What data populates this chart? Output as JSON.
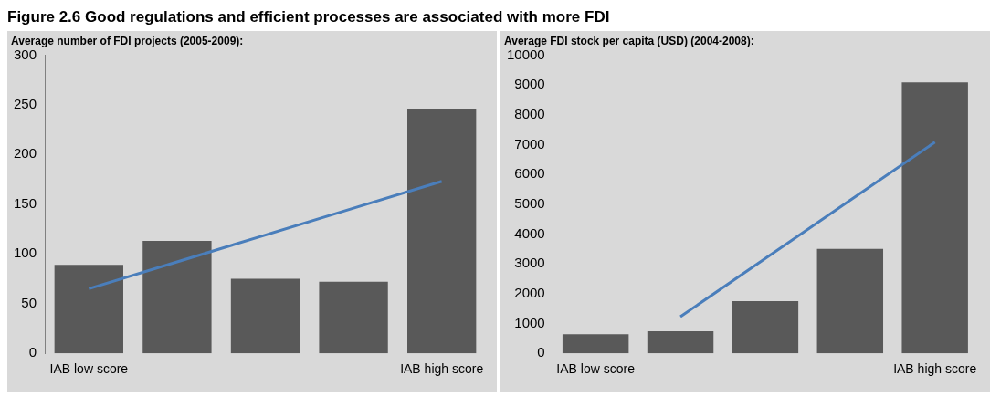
{
  "chart_data": [
    {
      "type": "bar",
      "title": "Average number of FDI projects (2005-2009):",
      "annotations": [
        "Figure 2.6 Good regulations and efficient processes are associated with more FDI"
      ],
      "categories": [
        "IAB low score",
        null,
        null,
        null,
        "IAB high score"
      ],
      "series": [
        {
          "color": "#595959",
          "values": [
            89,
            113,
            75,
            72,
            246
          ]
        },
        {
          "type": "line",
          "color": "#4a7ebb",
          "values": [
            65,
            92,
            119,
            146,
            173
          ]
        }
      ],
      "ylim": [
        0,
        300
      ],
      "yticks": [
        0,
        50,
        100,
        150,
        200,
        250,
        300
      ],
      "grid": false,
      "legend": false
    },
    {
      "type": "bar",
      "title": "Average FDI stock per capita (USD) (2004-2008):",
      "categories": [
        "IAB low score",
        null,
        null,
        null,
        "IAB high score"
      ],
      "series": [
        {
          "color": "#595959",
          "values": [
            640,
            740,
            1750,
            3500,
            9090
          ]
        },
        {
          "type": "line",
          "color": "#4a7ebb",
          "values": [
            null,
            1230,
            3180,
            5130,
            7080
          ]
        }
      ],
      "ylim": [
        0,
        10000
      ],
      "yticks": [
        0,
        1000,
        2000,
        3000,
        4000,
        5000,
        6000,
        7000,
        8000,
        9000,
        10000
      ],
      "grid": false,
      "legend": false
    }
  ]
}
